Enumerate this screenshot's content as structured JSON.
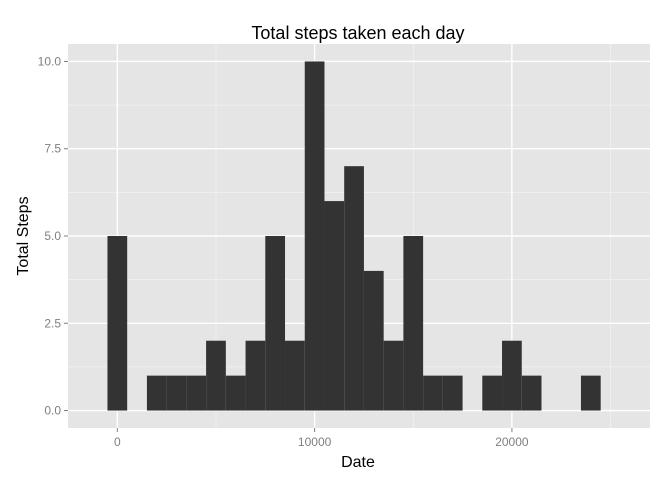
{
  "chart_data": {
    "type": "bar",
    "title": "Total steps taken each day",
    "xlabel": "Date",
    "ylabel": "Total Steps",
    "bin_width": 1000,
    "xlim": [
      -2500,
      27000
    ],
    "ylim": [
      -0.5,
      10.5
    ],
    "x_ticks": [
      0,
      10000,
      20000
    ],
    "x_tick_labels": [
      "0",
      "10000",
      "20000"
    ],
    "y_ticks": [
      0,
      2.5,
      5,
      7.5,
      10
    ],
    "y_tick_labels": [
      "0.0",
      "2.5",
      "5.0",
      "7.5",
      "10.0"
    ],
    "bins": [
      {
        "x": 0,
        "count": 5
      },
      {
        "x": 1000,
        "count": 0
      },
      {
        "x": 2000,
        "count": 1
      },
      {
        "x": 3000,
        "count": 1
      },
      {
        "x": 4000,
        "count": 1
      },
      {
        "x": 5000,
        "count": 2
      },
      {
        "x": 6000,
        "count": 1
      },
      {
        "x": 7000,
        "count": 2
      },
      {
        "x": 8000,
        "count": 5
      },
      {
        "x": 9000,
        "count": 2
      },
      {
        "x": 10000,
        "count": 10
      },
      {
        "x": 11000,
        "count": 6
      },
      {
        "x": 12000,
        "count": 7
      },
      {
        "x": 13000,
        "count": 4
      },
      {
        "x": 14000,
        "count": 2
      },
      {
        "x": 15000,
        "count": 5
      },
      {
        "x": 16000,
        "count": 1
      },
      {
        "x": 17000,
        "count": 1
      },
      {
        "x": 18000,
        "count": 0
      },
      {
        "x": 19000,
        "count": 1
      },
      {
        "x": 20000,
        "count": 2
      },
      {
        "x": 21000,
        "count": 1
      },
      {
        "x": 22000,
        "count": 0
      },
      {
        "x": 23000,
        "count": 0
      },
      {
        "x": 24000,
        "count": 1
      }
    ],
    "grid": true,
    "colors": {
      "bar": "#333333",
      "panel": "#e5e5e5",
      "grid_major": "#ffffff",
      "grid_minor": "#f2f2f2",
      "tick_text": "#7f7f7f"
    }
  }
}
